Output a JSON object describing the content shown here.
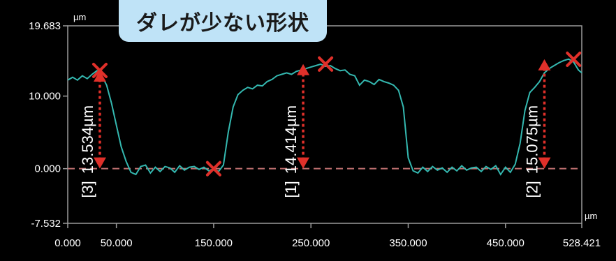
{
  "banner": {
    "title": "ダレが少ない形状"
  },
  "colors": {
    "background": "#000000",
    "frame": "#9a9a9a",
    "profile": "#34b8b0",
    "marker": "#e0302a",
    "zero_line": "#c07070",
    "arrow": "#e0302a",
    "text": "#ffffff"
  },
  "chart_data": {
    "type": "line",
    "title": "ダレが少ない形状",
    "xunit": "µm",
    "yunit": "µm",
    "xlim": [
      0,
      528.421
    ],
    "ylim": [
      -7.532,
      19.683
    ],
    "xticks": [
      "0.000",
      "50.000",
      "150.000",
      "250.000",
      "350.000",
      "450.000",
      "528.421"
    ],
    "yticks": [
      "19.683",
      "10.000",
      "0.000",
      "-7.532"
    ],
    "grid": false,
    "series": [
      {
        "x": [
          0,
          5,
          10,
          15,
          20,
          25,
          30,
          35,
          40,
          45,
          50,
          55,
          60,
          65,
          70,
          75,
          80,
          85,
          90,
          95,
          100,
          105,
          110,
          115,
          120,
          125,
          130,
          135,
          140,
          145,
          150,
          155,
          160,
          165,
          170,
          175,
          180,
          185,
          190,
          195,
          200,
          205,
          210,
          215,
          220,
          225,
          230,
          235,
          240,
          245,
          250,
          255,
          260,
          265,
          270,
          275,
          280,
          285,
          290,
          295,
          300,
          305,
          310,
          315,
          320,
          325,
          330,
          335,
          340,
          345,
          350,
          355,
          360,
          365,
          370,
          375,
          380,
          385,
          390,
          395,
          400,
          405,
          410,
          415,
          420,
          425,
          430,
          435,
          440,
          445,
          450,
          455,
          460,
          465,
          470,
          475,
          480,
          485,
          490,
          495,
          500,
          505,
          510,
          515,
          520,
          525,
          528.421
        ],
        "y": [
          12.2,
          12.6,
          12.2,
          12.8,
          12.4,
          13.0,
          13.5,
          12.8,
          11.5,
          9.0,
          6.0,
          3.0,
          1.0,
          -0.5,
          -0.8,
          0.3,
          0.5,
          -0.6,
          0.2,
          -0.4,
          0.3,
          0.1,
          -0.5,
          0.4,
          -0.2,
          0.2,
          0.3,
          -0.1,
          0.2,
          -0.3,
          0.0,
          -0.4,
          0.5,
          5.0,
          8.5,
          10.2,
          10.8,
          11.2,
          11.0,
          11.5,
          11.4,
          12.0,
          12.3,
          12.8,
          13.0,
          13.2,
          13.0,
          13.4,
          13.6,
          13.8,
          14.0,
          14.2,
          14.4,
          14.1,
          14.2,
          13.8,
          13.5,
          13.6,
          13.0,
          12.8,
          11.5,
          12.2,
          12.0,
          11.6,
          12.3,
          12.0,
          11.8,
          11.5,
          10.8,
          8.5,
          1.5,
          -0.3,
          -0.6,
          0.2,
          -0.4,
          0.3,
          -0.2,
          0.1,
          -0.5,
          0.2,
          -0.3,
          0.4,
          -0.2,
          0.1,
          0.2,
          -0.4,
          0.3,
          -0.1,
          0.4,
          -0.8,
          0.2,
          -0.5,
          0.6,
          3.5,
          8.0,
          10.5,
          11.2,
          12.0,
          13.2,
          13.8,
          14.2,
          14.6,
          14.9,
          15.1,
          14.7,
          13.6,
          13.2
        ]
      }
    ],
    "reference_line": {
      "y": 0.0
    },
    "markers": [
      {
        "x": 33,
        "y": 13.534
      },
      {
        "x": 150,
        "y": 0.0
      },
      {
        "x": 265,
        "y": 14.414
      },
      {
        "x": 520,
        "y": 15.075
      }
    ],
    "annotations": [
      {
        "index": "[3]",
        "value": "13.534µm",
        "x": 33,
        "y_from": 0.0,
        "y_to": 13.534
      },
      {
        "index": "[1]",
        "value": "14.414µm",
        "x": 242,
        "y_from": 0.0,
        "y_to": 14.414
      },
      {
        "index": "[2]",
        "value": "15.075µm",
        "x": 490,
        "y_from": 0.0,
        "y_to": 15.075
      }
    ]
  }
}
